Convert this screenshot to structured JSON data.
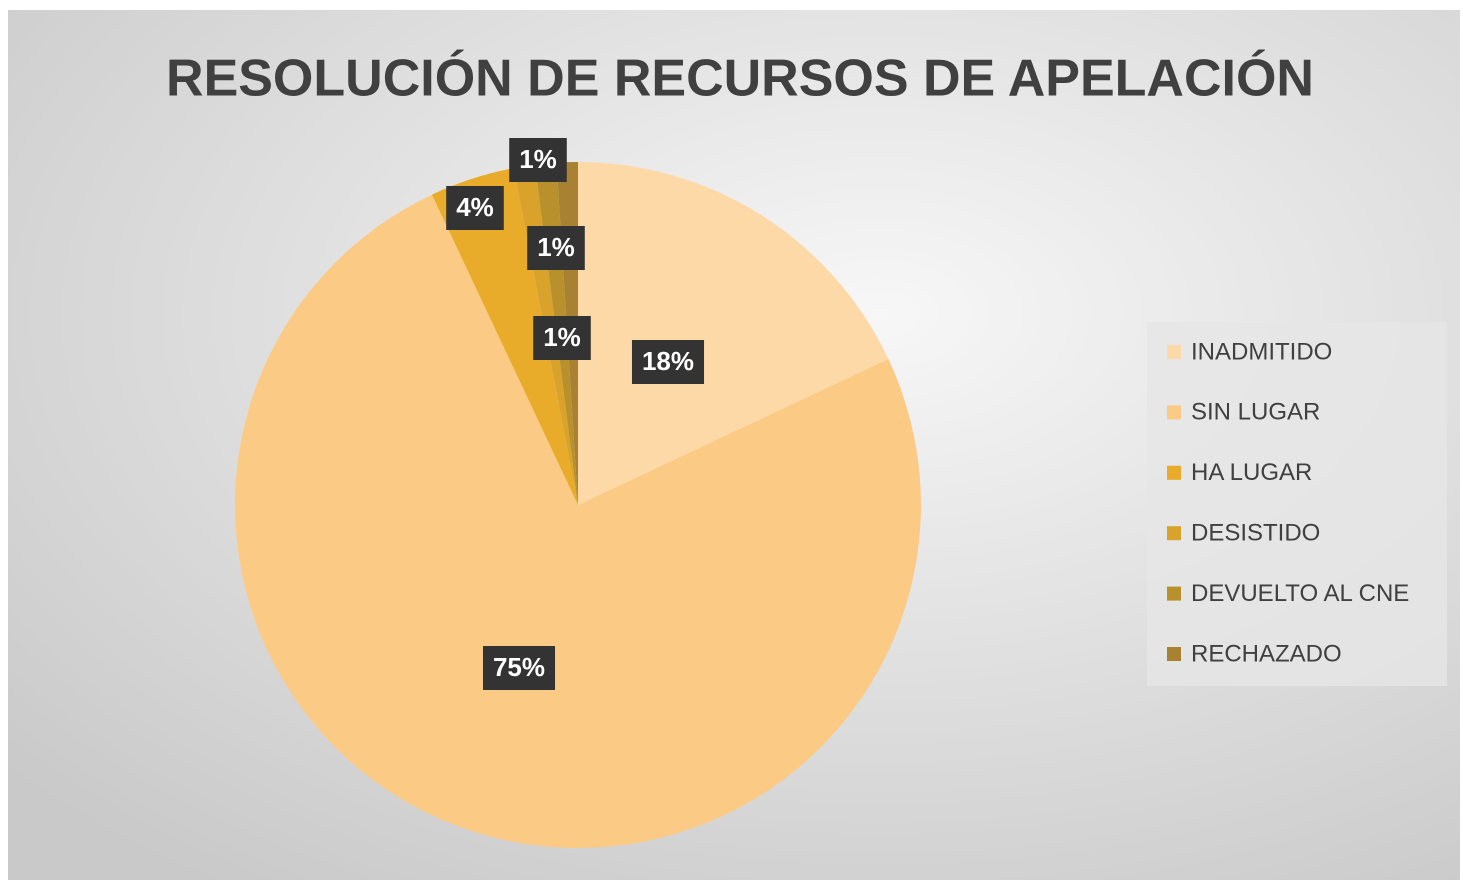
{
  "chart_data": {
    "type": "pie",
    "title": "RESOLUCIÓN DE RECURSOS DE APELACIÓN",
    "categories": [
      "INADMITIDO",
      "SIN LUGAR",
      "HA LUGAR",
      "DESISTIDO",
      "DEVUELTO AL CNE",
      "RECHAZADO"
    ],
    "values": [
      18,
      75,
      4,
      1,
      1,
      1
    ],
    "value_labels": [
      "18%",
      "75%",
      "4%",
      "1%",
      "1%",
      "1%"
    ],
    "colors": [
      "#fdd9a8",
      "#fbcb85",
      "#e8ab2a",
      "#d9a22b",
      "#b8902c",
      "#a88232"
    ],
    "legend": "right"
  }
}
